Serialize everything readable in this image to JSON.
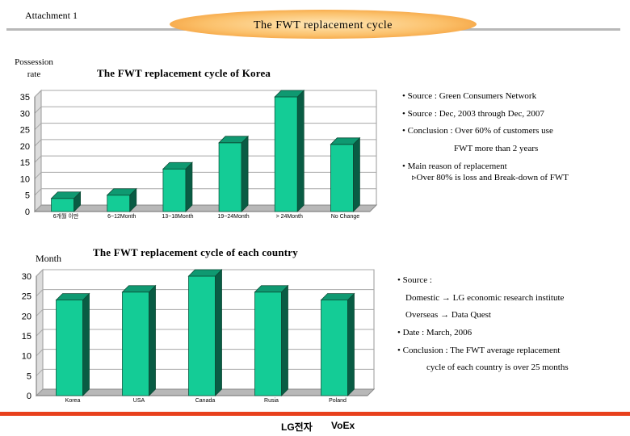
{
  "header": {
    "attachment": "Attachment 1",
    "banner_title": "The FWT replacement cycle"
  },
  "chart_data": [
    {
      "type": "bar",
      "title": "The FWT replacement cycle of Korea",
      "ylabel_line1": "Possession",
      "ylabel_line2": "rate",
      "categories": [
        "6개월 이만",
        "6~12Month",
        "13~18Month",
        "19~24Month",
        "> 24Month",
        "No Change"
      ],
      "values": [
        4,
        5,
        13,
        21,
        35,
        20.5
      ],
      "yticks": [
        0,
        5,
        10,
        15,
        20,
        25,
        30,
        35
      ],
      "ylim": [
        0,
        35
      ],
      "grid": true,
      "bar_color": "#14cc96"
    },
    {
      "type": "bar",
      "title": "The FWT replacement cycle of each country",
      "ylabel": "Month",
      "categories": [
        "Korea",
        "USA",
        "Canada",
        "Rusia",
        "Poland"
      ],
      "values": [
        24,
        26,
        30,
        26,
        24
      ],
      "yticks": [
        0,
        5,
        10,
        15,
        20,
        25,
        30
      ],
      "ylim": [
        0,
        30
      ],
      "grid": true,
      "bar_color": "#14cc96"
    }
  ],
  "notes_korea": {
    "source1": "• Source : Green Consumers Network",
    "source2": "• Source : Dec, 2003  through Dec, 2007",
    "conclusion1": "• Conclusion : Over 60% of customers use",
    "conclusion2": "FWT more than 2 years",
    "reason1": "• Main reason of replacement",
    "reason2": "▹Over 80% is loss and Break-down of FWT"
  },
  "notes_country": {
    "source": "• Source :",
    "domestic": "Domestic → LG economic research institute",
    "overseas": "Overseas → Data Quest",
    "date": "• Date : March, 2006",
    "conclusion1": "• Conclusion : The FWT average replacement",
    "conclusion2": "cycle of each country is over 25 months"
  },
  "footer": {
    "company": "LG전자",
    "dept": "VoEx"
  }
}
